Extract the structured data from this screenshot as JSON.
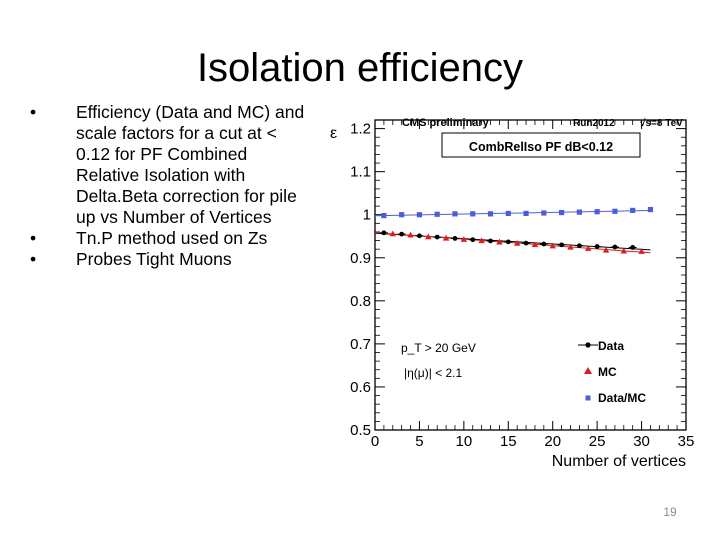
{
  "slide": {
    "title": "Isolation efficiency",
    "bullets": [
      "Efficiency (Data and MC) and scale factors for a cut at < 0.12 for PF Combined Relative Isolation with Delta.Beta correction for pile up vs Number of Vertices",
      "Tn.P method used on Zs",
      "Probes Tight Muons"
    ],
    "bullet_glyph": "•",
    "page_number": "19"
  },
  "chart_data": {
    "type": "scatter",
    "header_left": "CMS preliminary",
    "header_mid": "Run2012",
    "header_right": "√s=8 TeV",
    "cut_label": "CombRelIso PF dB<0.12",
    "ylabel": "ε",
    "xlabel": "Number of vertices",
    "xlim": [
      0,
      35
    ],
    "ylim": [
      0.5,
      1.22
    ],
    "x_ticks": [
      0,
      5,
      10,
      15,
      20,
      25,
      30,
      35
    ],
    "y_ticks": [
      0.5,
      0.6,
      0.7,
      0.8,
      0.9,
      1.0,
      1.1,
      1.2
    ],
    "y_tick_labels": [
      "0.5",
      "0.6",
      "0.7",
      "0.8",
      "0.9",
      "1",
      "1.1",
      "1.2"
    ],
    "annotations": [
      "p_T > 20 GeV",
      "|η(μ)| < 2.1"
    ],
    "series": [
      {
        "name": "Data",
        "marker": "circle",
        "color": "#000000",
        "x": [
          1,
          3,
          5,
          7,
          9,
          11,
          13,
          15,
          17,
          19,
          21,
          23,
          25,
          27,
          29
        ],
        "y": [
          0.958,
          0.955,
          0.951,
          0.948,
          0.945,
          0.942,
          0.939,
          0.937,
          0.934,
          0.932,
          0.93,
          0.928,
          0.926,
          0.925,
          0.924
        ]
      },
      {
        "name": "MC",
        "marker": "triangle",
        "color": "#d42020",
        "x": [
          2,
          4,
          6,
          8,
          10,
          12,
          14,
          16,
          18,
          20,
          22,
          24,
          26,
          28,
          30
        ],
        "y": [
          0.956,
          0.953,
          0.949,
          0.946,
          0.943,
          0.94,
          0.937,
          0.934,
          0.931,
          0.928,
          0.925,
          0.922,
          0.918,
          0.916,
          0.915
        ]
      },
      {
        "name": "Data/MC",
        "marker": "square",
        "color": "#4a5fd6",
        "x": [
          1,
          3,
          5,
          7,
          9,
          11,
          13,
          15,
          17,
          19,
          21,
          23,
          25,
          27,
          29,
          31
        ],
        "y": [
          0.998,
          1.0,
          1.0,
          1.001,
          1.002,
          1.002,
          1.002,
          1.003,
          1.003,
          1.004,
          1.005,
          1.006,
          1.007,
          1.008,
          1.01,
          1.012
        ]
      }
    ]
  }
}
